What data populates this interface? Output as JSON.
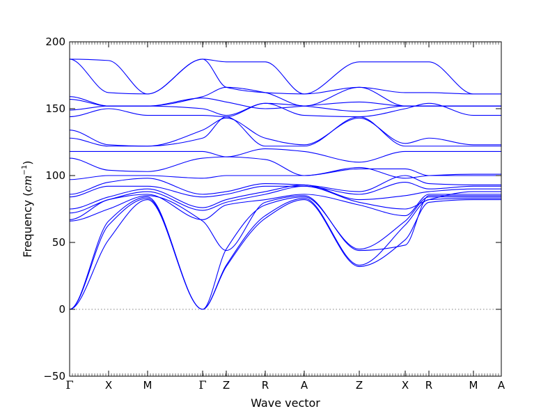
{
  "chart_data": {
    "type": "line",
    "title": "",
    "xlabel": "Wave vector",
    "ylabel_text": "Frequency (",
    "ylabel_unit_base": "cm",
    "ylabel_unit_exp": "−1",
    "ylabel_close": ")",
    "ylim": [
      -50,
      200
    ],
    "yticks": [
      -50,
      0,
      50,
      100,
      150,
      200
    ],
    "xlim": [
      0,
      1
    ],
    "grid": false,
    "zero_line": {
      "value": 0,
      "style": "dotted"
    },
    "path_points": [
      {
        "label": "Γ",
        "x": 0.0
      },
      {
        "label": "X",
        "x": 0.0903
      },
      {
        "label": "M",
        "x": 0.1806
      },
      {
        "label": "Γ",
        "x": 0.3081
      },
      {
        "label": "Z",
        "x": 0.3629
      },
      {
        "label": "R",
        "x": 0.4532
      },
      {
        "label": "A",
        "x": 0.5435
      },
      {
        "label": "Z",
        "x": 0.671
      },
      {
        "label": "X",
        "x": 0.7774
      },
      {
        "label": "R",
        "x": 0.8323
      },
      {
        "label": "M",
        "x": 0.9355
      },
      {
        "label": "A",
        "x": 1.0
      }
    ],
    "series_color": "#0000ff",
    "bands": [
      [
        0,
        52,
        82,
        0,
        32,
        68,
        82,
        32,
        52,
        80,
        82,
        82
      ],
      [
        0,
        63,
        83,
        0,
        33,
        70,
        83,
        33,
        63,
        82,
        83,
        83
      ],
      [
        0,
        66,
        84,
        0,
        45,
        78,
        84,
        45,
        66,
        84,
        84,
        84
      ],
      [
        66,
        75,
        85,
        66,
        44,
        80,
        85,
        44,
        48,
        85,
        85,
        85
      ],
      [
        67,
        82,
        86,
        67,
        78,
        82,
        86,
        78,
        70,
        86,
        86,
        86
      ],
      [
        72,
        82,
        88,
        74,
        80,
        86,
        92,
        80,
        75,
        82,
        88,
        88
      ],
      [
        75,
        84,
        90,
        76,
        82,
        88,
        93,
        82,
        85,
        88,
        90,
        90
      ],
      [
        84,
        92,
        92,
        84,
        86,
        92,
        92,
        86,
        95,
        90,
        92,
        92
      ],
      [
        86,
        95,
        98,
        86,
        88,
        94,
        93,
        88,
        100,
        94,
        93,
        93
      ],
      [
        97,
        100,
        100,
        98,
        100,
        100,
        100,
        105,
        105,
        100,
        100,
        100
      ],
      [
        113,
        104,
        103,
        113,
        114,
        112,
        100,
        106,
        98,
        100,
        101,
        101
      ],
      [
        118,
        118,
        118,
        118,
        114,
        120,
        118,
        110,
        118,
        118,
        118,
        118
      ],
      [
        128,
        122,
        122,
        128,
        144,
        122,
        122,
        144,
        122,
        122,
        122,
        122
      ],
      [
        134,
        123,
        122,
        134,
        143,
        128,
        123,
        143,
        124,
        128,
        123,
        123
      ],
      [
        144,
        150,
        145,
        145,
        144,
        154,
        145,
        144,
        150,
        154,
        145,
        145
      ],
      [
        149,
        152,
        152,
        150,
        145,
        154,
        152,
        148,
        152,
        152,
        152,
        152
      ],
      [
        157,
        152,
        152,
        158,
        155,
        150,
        152,
        155,
        152,
        152,
        152,
        152
      ],
      [
        159,
        152,
        152,
        159,
        166,
        162,
        152,
        166,
        152,
        152,
        152,
        152
      ],
      [
        187,
        162,
        161,
        187,
        166,
        162,
        161,
        166,
        162,
        162,
        161,
        161
      ],
      [
        187,
        186,
        161,
        187,
        185,
        185,
        161,
        185,
        185,
        185,
        161,
        161
      ]
    ]
  }
}
